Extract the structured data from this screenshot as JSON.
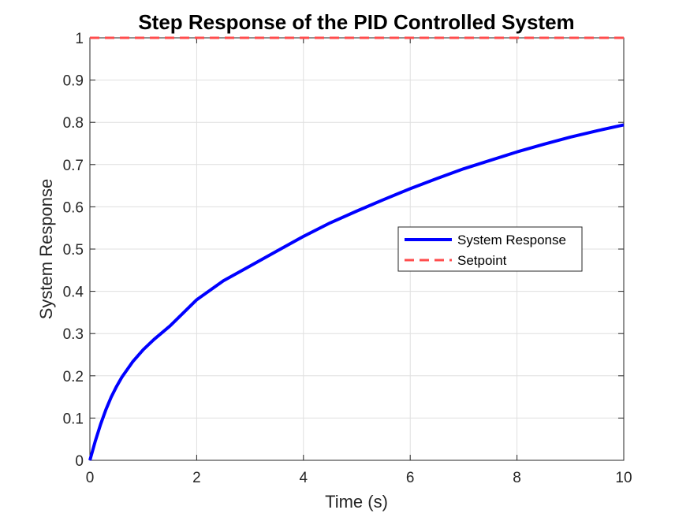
{
  "chart_data": {
    "type": "line",
    "title": "Step Response of the PID Controlled System",
    "xlabel": "Time (s)",
    "ylabel": "System Response",
    "xlim": [
      0,
      10
    ],
    "ylim": [
      0,
      1
    ],
    "xticks": [
      0,
      2,
      4,
      6,
      8,
      10
    ],
    "yticks": [
      0,
      0.1,
      0.2,
      0.3,
      0.4,
      0.5,
      0.6,
      0.7,
      0.8,
      0.9,
      1
    ],
    "grid": true,
    "legend_position": "center-right",
    "series": [
      {
        "name": "System Response",
        "color": "#0000ff",
        "style": "solid",
        "x": [
          0,
          0.1,
          0.2,
          0.3,
          0.4,
          0.5,
          0.6,
          0.8,
          1.0,
          1.2,
          1.5,
          2.0,
          2.5,
          3.0,
          3.5,
          4.0,
          4.5,
          5.0,
          5.5,
          6.0,
          6.5,
          7.0,
          7.5,
          8.0,
          8.5,
          9.0,
          9.5,
          10.0
        ],
        "y": [
          0,
          0.045,
          0.085,
          0.12,
          0.15,
          0.175,
          0.197,
          0.233,
          0.262,
          0.286,
          0.318,
          0.38,
          0.425,
          0.46,
          0.495,
          0.53,
          0.562,
          0.59,
          0.617,
          0.643,
          0.667,
          0.69,
          0.71,
          0.73,
          0.748,
          0.765,
          0.78,
          0.794
        ]
      },
      {
        "name": "Setpoint",
        "color": "#ff4d4d",
        "style": "dashed",
        "x": [
          0,
          10
        ],
        "y": [
          1,
          1
        ]
      }
    ]
  }
}
